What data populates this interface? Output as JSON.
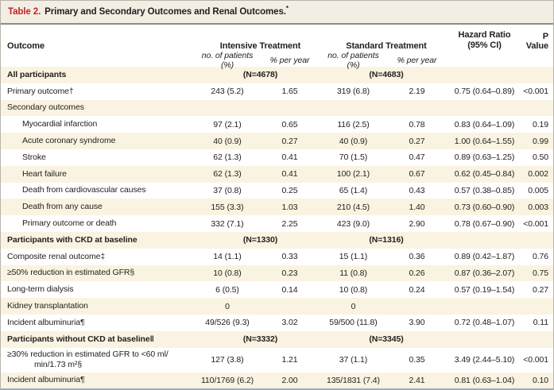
{
  "colors": {
    "accent_red": "#c32127",
    "title_bar_bg": "#f2eee4",
    "row_stripe_cream": "#fbf3e1",
    "text": "#242020",
    "title_rule": "#8e8b81",
    "outer_border": "#b8b4ab"
  },
  "table": {
    "title_label": "Table 2.",
    "title_text": "Primary and Secondary Outcomes and Renal Outcomes.",
    "title_footnote_marker": "*",
    "columns": {
      "outcome": "Outcome",
      "intensive": "Intensive Treatment",
      "standard": "Standard Treatment",
      "hazard_line1": "Hazard Ratio",
      "hazard_line2": "(95% CI)",
      "p_value": "P Value",
      "sub_no_patients": "no. of patients (%)",
      "sub_rate": "% per year"
    },
    "rows": [
      {
        "type": "section",
        "label": "All participants",
        "n_intensive": "(N=4678)",
        "n_standard": "(N=4683)"
      },
      {
        "type": "data",
        "label": "Primary outcome†",
        "cells": [
          "243 (5.2)",
          "1.65",
          "319 (6.8)",
          "2.19",
          "0.75 (0.64–0.89)",
          "<0.001"
        ]
      },
      {
        "type": "subhead",
        "label": "Secondary outcomes"
      },
      {
        "type": "data",
        "indent": true,
        "label": "Myocardial infarction",
        "cells": [
          "97 (2.1)",
          "0.65",
          "116 (2.5)",
          "0.78",
          "0.83 (0.64–1.09)",
          "0.19"
        ]
      },
      {
        "type": "data",
        "indent": true,
        "label": "Acute coronary syndrome",
        "cells": [
          "40 (0.9)",
          "0.27",
          "40 (0.9)",
          "0.27",
          "1.00 (0.64–1.55)",
          "0.99"
        ]
      },
      {
        "type": "data",
        "indent": true,
        "label": "Stroke",
        "cells": [
          "62 (1.3)",
          "0.41",
          "70 (1.5)",
          "0.47",
          "0.89 (0.63–1.25)",
          "0.50"
        ]
      },
      {
        "type": "data",
        "indent": true,
        "label": "Heart failure",
        "cells": [
          "62 (1.3)",
          "0.41",
          "100 (2.1)",
          "0.67",
          "0.62 (0.45–0.84)",
          "0.002"
        ]
      },
      {
        "type": "data",
        "indent": true,
        "label": "Death from cardiovascular causes",
        "cells": [
          "37 (0.8)",
          "0.25",
          "65 (1.4)",
          "0.43",
          "0.57 (0.38–0.85)",
          "0.005"
        ]
      },
      {
        "type": "data",
        "indent": true,
        "label": "Death from any cause",
        "cells": [
          "155 (3.3)",
          "1.03",
          "210 (4.5)",
          "1.40",
          "0.73 (0.60–0.90)",
          "0.003"
        ]
      },
      {
        "type": "data",
        "indent": true,
        "label": "Primary outcome or death",
        "cells": [
          "332 (7.1)",
          "2.25",
          "423 (9.0)",
          "2.90",
          "0.78 (0.67–0.90)",
          "<0.001"
        ]
      },
      {
        "type": "section",
        "label": "Participants with CKD at baseline",
        "n_intensive": "(N=1330)",
        "n_standard": "(N=1316)"
      },
      {
        "type": "data",
        "label": "Composite renal outcome‡",
        "cells": [
          "14 (1.1)",
          "0.33",
          "15 (1.1)",
          "0.36",
          "0.89 (0.42–1.87)",
          "0.76"
        ]
      },
      {
        "type": "data",
        "label": "≥50% reduction in estimated GFR§",
        "cells": [
          "10 (0.8)",
          "0.23",
          "11 (0.8)",
          "0.26",
          "0.87 (0.36–2.07)",
          "0.75"
        ]
      },
      {
        "type": "data",
        "label": "Long-term dialysis",
        "cells": [
          "6 (0.5)",
          "0.14",
          "10 (0.8)",
          "0.24",
          "0.57 (0.19–1.54)",
          "0.27"
        ]
      },
      {
        "type": "data",
        "label": "Kidney transplantation",
        "cells": [
          "0",
          "",
          "0",
          "",
          "",
          ""
        ]
      },
      {
        "type": "data",
        "label": "Incident albuminuria¶",
        "cells": [
          "49/526 (9.3)",
          "3.02",
          "59/500 (11.8)",
          "3.90",
          "0.72 (0.48–1.07)",
          "0.11"
        ]
      },
      {
        "type": "section",
        "label": "Participants without CKD at baseline‖",
        "n_intensive": "(N=3332)",
        "n_standard": "(N=3345)"
      },
      {
        "type": "data",
        "tall": true,
        "label": "≥30% reduction in estimated GFR to <60 ml/",
        "label2": "min/1.73 m²§",
        "cells": [
          "127 (3.8)",
          "1.21",
          "37 (1.1)",
          "0.35",
          "3.49 (2.44–5.10)",
          "<0.001"
        ]
      },
      {
        "type": "data",
        "label": "Incident albuminuria¶",
        "cells": [
          "110/1769 (6.2)",
          "2.00",
          "135/1831 (7.4)",
          "2.41",
          "0.81 (0.63–1.04)",
          "0.10"
        ]
      }
    ]
  }
}
